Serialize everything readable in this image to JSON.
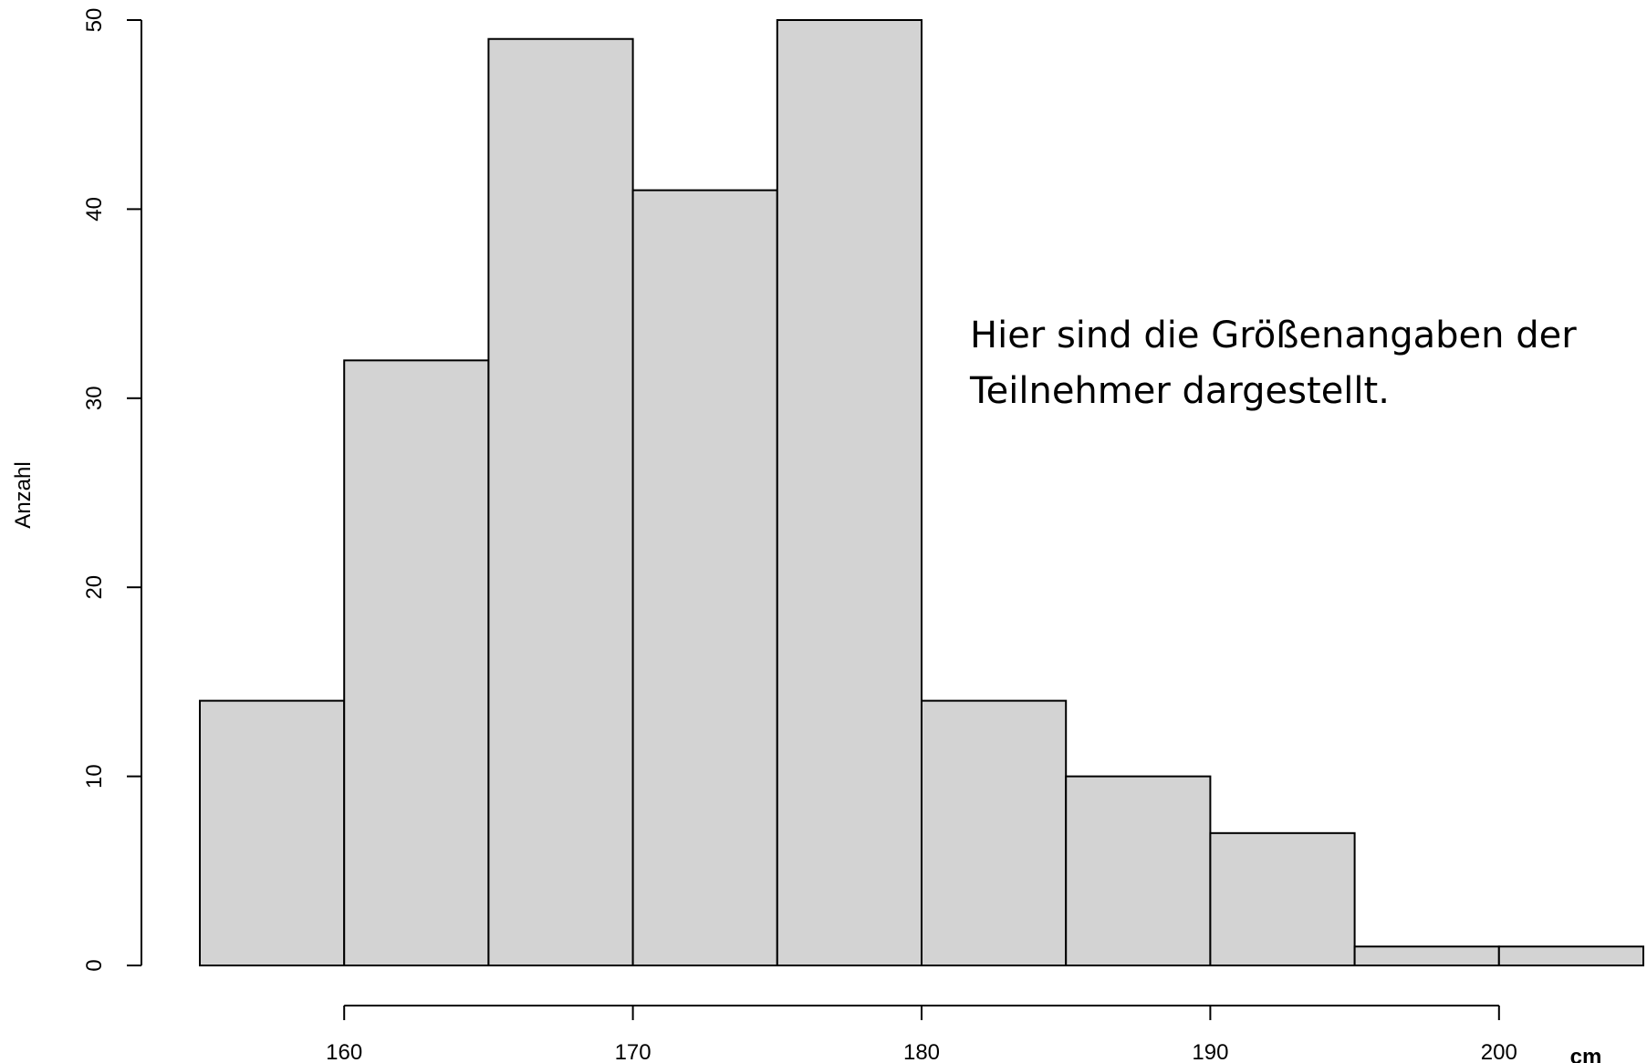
{
  "chart_data": {
    "type": "bar",
    "bin_edges": [
      155,
      160,
      165,
      170,
      175,
      180,
      185,
      190,
      195,
      200,
      205
    ],
    "values": [
      14,
      32,
      49,
      41,
      50,
      14,
      10,
      7,
      1,
      1
    ],
    "xlabel": "cm",
    "ylabel": "Anzahl",
    "xlim": [
      155,
      205
    ],
    "ylim": [
      0,
      50
    ],
    "xticks": [
      160,
      170,
      180,
      190,
      200
    ],
    "yticks": [
      0,
      10,
      20,
      30,
      40,
      50
    ],
    "bar_fill": "#d3d3d3",
    "bar_stroke": "#000000",
    "grid": false,
    "annotation_lines": [
      "Hier sind die Größenangaben der",
      "Teilnehmer dargestellt."
    ]
  }
}
